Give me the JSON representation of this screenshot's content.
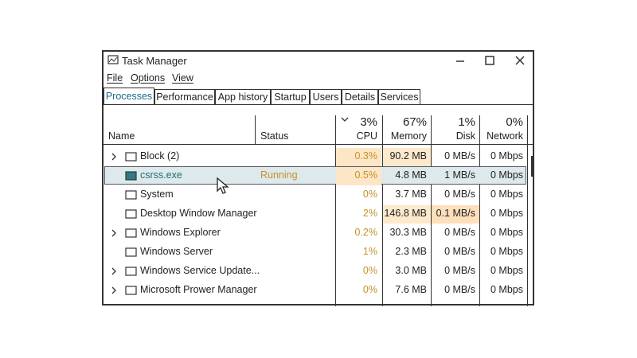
{
  "window": {
    "title": "Task Manager",
    "menu": [
      "File",
      "Options",
      "View"
    ],
    "tabs": [
      "Processes",
      "Performance",
      "App history",
      "Startup",
      "Users",
      "Details",
      "Services"
    ],
    "active_tab": 0,
    "columns": {
      "name": "Name",
      "status": "Status",
      "cpu": {
        "total": "3%",
        "label": "CPU"
      },
      "memory": {
        "total": "67%",
        "label": "Memory"
      },
      "disk": {
        "total": "1%",
        "label": "Disk"
      },
      "network": {
        "total": "0%",
        "label": "Network"
      }
    },
    "rows": [
      {
        "name": "Block (2)",
        "status": null,
        "cells": [
          "0.3%",
          "90.2 MB",
          "0 MB/s",
          "0 Mbps"
        ],
        "heat": [
          true,
          true,
          false,
          false
        ],
        "expand": true,
        "selected": false
      },
      {
        "name": "csrss.exe",
        "status": "Running",
        "cells": [
          "0.5%",
          "4.8 MB",
          "1 MB/s",
          "0 Mbps"
        ],
        "heat": [
          true,
          false,
          false,
          false
        ],
        "expand": false,
        "selected": true
      },
      {
        "name": "System",
        "status": null,
        "cells": [
          "0%",
          "3.7 MB",
          "0 MB/s",
          "0 Mbps"
        ],
        "heat": [
          false,
          false,
          false,
          false
        ],
        "expand": false,
        "selected": false
      },
      {
        "name": "Desktop Window Manager",
        "status": null,
        "cells": [
          "2%",
          "146.8 MB",
          "0.1 MB/s",
          "0 Mbps"
        ],
        "heat": [
          false,
          true,
          true,
          false
        ],
        "expand": false,
        "selected": false
      },
      {
        "name": "Windows Explorer",
        "status": null,
        "cells": [
          "0.2%",
          "30.3 MB",
          "0 MB/s",
          "0 Mbps"
        ],
        "heat": [
          false,
          false,
          false,
          false
        ],
        "expand": true,
        "selected": false
      },
      {
        "name": "Windows Server",
        "status": null,
        "cells": [
          "1%",
          "2.3 MB",
          "0 MB/s",
          "0 Mbps"
        ],
        "heat": [
          false,
          false,
          false,
          false
        ],
        "expand": false,
        "selected": false
      },
      {
        "name": "Windows Service Update...",
        "status": null,
        "cells": [
          "0%",
          "3.0 MB",
          "0 MB/s",
          "0 Mbps"
        ],
        "heat": [
          false,
          false,
          false,
          false
        ],
        "expand": true,
        "selected": false
      },
      {
        "name": "Microsoft Prower Manager",
        "status": null,
        "cells": [
          "0%",
          "7.6 MB",
          "0 MB/s",
          "0 Mbps"
        ],
        "heat": [
          false,
          false,
          false,
          false
        ],
        "expand": true,
        "selected": false
      }
    ]
  }
}
